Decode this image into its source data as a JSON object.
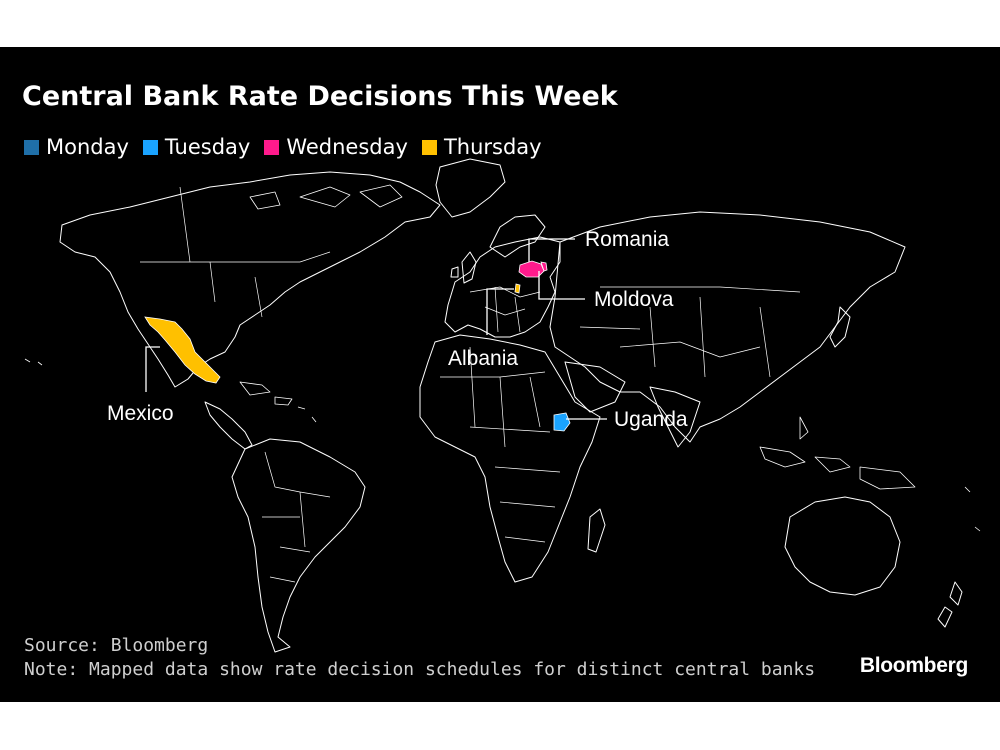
{
  "title": "Central Bank Rate Decisions This Week",
  "legend": [
    {
      "label": "Monday",
      "color": "#1f6fa8"
    },
    {
      "label": "Tuesday",
      "color": "#1aa3ff"
    },
    {
      "label": "Wednesday",
      "color": "#ff1a8c"
    },
    {
      "label": "Thursday",
      "color": "#ffc000"
    }
  ],
  "callouts": {
    "romania": "Romania",
    "moldova": "Moldova",
    "albania": "Albania",
    "mexico": "Mexico",
    "uganda": "Uganda"
  },
  "highlighted_countries": [
    {
      "name": "Mexico",
      "day": "Thursday"
    },
    {
      "name": "Albania",
      "day": "Thursday"
    },
    {
      "name": "Romania",
      "day": "Wednesday"
    },
    {
      "name": "Moldova",
      "day": "Wednesday"
    },
    {
      "name": "Uganda",
      "day": "Tuesday"
    }
  ],
  "footer": {
    "source": "Source: Bloomberg",
    "note": "Note: Mapped data show rate decision schedules for distinct central banks"
  },
  "brand": "Bloomberg"
}
